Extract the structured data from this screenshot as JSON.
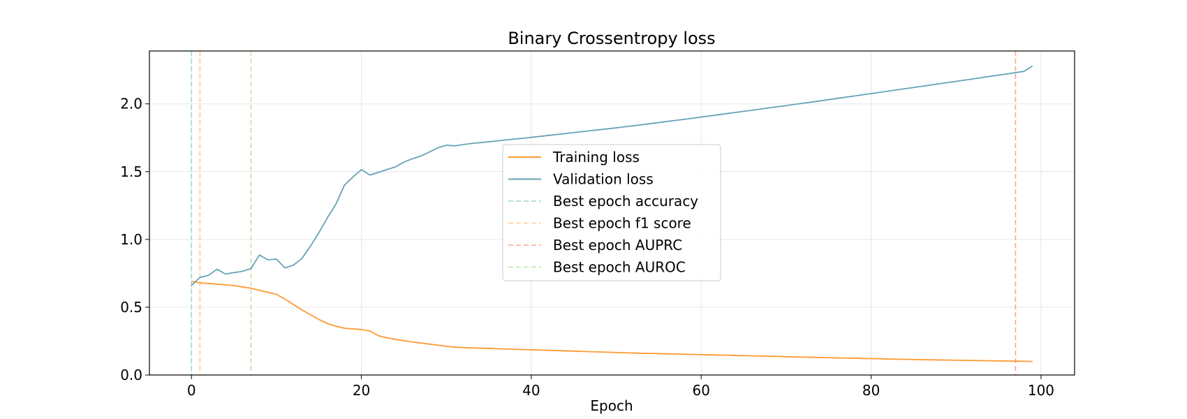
{
  "chart_data": {
    "type": "line",
    "title": "Binary Crossentropy loss",
    "xlabel": "Epoch",
    "ylabel": "",
    "xlim": [
      -4.95,
      103.95
    ],
    "ylim": [
      0.0,
      2.39
    ],
    "xticks": [
      0,
      20,
      40,
      60,
      80,
      100
    ],
    "yticks": [
      0.0,
      0.5,
      1.0,
      1.5,
      2.0
    ],
    "xtick_labels": [
      "0",
      "20",
      "40",
      "60",
      "80",
      "100"
    ],
    "ytick_labels": [
      "0.0",
      "0.5",
      "1.0",
      "1.5",
      "2.0"
    ],
    "grid": true,
    "legend_position": "center",
    "series": [
      {
        "name": "Training loss",
        "color": "#ff9933",
        "x": [
          0,
          1,
          2,
          3,
          4,
          5,
          6,
          7,
          8,
          9,
          10,
          11,
          12,
          13,
          14,
          15,
          16,
          17,
          18,
          19,
          20,
          21,
          22,
          23,
          24,
          25,
          26,
          27,
          28,
          29,
          30,
          31,
          32,
          33,
          34,
          35,
          36,
          37,
          38,
          39,
          40,
          41,
          42,
          43,
          44,
          45,
          46,
          47,
          48,
          49,
          50,
          51,
          52,
          53,
          54,
          55,
          56,
          57,
          58,
          59,
          60,
          61,
          62,
          63,
          64,
          65,
          66,
          67,
          68,
          69,
          70,
          71,
          72,
          73,
          74,
          75,
          76,
          77,
          78,
          79,
          80,
          81,
          82,
          83,
          84,
          85,
          86,
          87,
          88,
          89,
          90,
          91,
          92,
          93,
          94,
          95,
          96,
          97,
          98,
          99
        ],
        "y": [
          0.69,
          0.68,
          0.675,
          0.67,
          0.665,
          0.66,
          0.65,
          0.64,
          0.625,
          0.61,
          0.595,
          0.56,
          0.52,
          0.48,
          0.445,
          0.41,
          0.38,
          0.36,
          0.345,
          0.34,
          0.335,
          0.325,
          0.29,
          0.275,
          0.263,
          0.253,
          0.244,
          0.236,
          0.228,
          0.22,
          0.212,
          0.205,
          0.202,
          0.2,
          0.198,
          0.196,
          0.194,
          0.192,
          0.19,
          0.188,
          0.186,
          0.184,
          0.182,
          0.18,
          0.178,
          0.176,
          0.174,
          0.172,
          0.17,
          0.168,
          0.166,
          0.164,
          0.162,
          0.16,
          0.159,
          0.158,
          0.156,
          0.155,
          0.153,
          0.152,
          0.15,
          0.149,
          0.147,
          0.146,
          0.144,
          0.143,
          0.141,
          0.14,
          0.138,
          0.137,
          0.135,
          0.134,
          0.132,
          0.131,
          0.129,
          0.128,
          0.126,
          0.125,
          0.124,
          0.122,
          0.121,
          0.12,
          0.118,
          0.117,
          0.116,
          0.114,
          0.113,
          0.112,
          0.111,
          0.11,
          0.109,
          0.108,
          0.107,
          0.106,
          0.105,
          0.104,
          0.103,
          0.102,
          0.101,
          0.1
        ]
      },
      {
        "name": "Validation loss",
        "color": "#66a3b5",
        "x": [
          0,
          1,
          2,
          3,
          4,
          5,
          6,
          7,
          8,
          9,
          10,
          11,
          12,
          13,
          14,
          15,
          16,
          17,
          18,
          19,
          20,
          21,
          22,
          23,
          24,
          25,
          26,
          27,
          28,
          29,
          30,
          31,
          32,
          33,
          34,
          35,
          36,
          37,
          38,
          39,
          40,
          41,
          42,
          43,
          44,
          45,
          46,
          47,
          48,
          49,
          50,
          51,
          52,
          53,
          54,
          55,
          56,
          57,
          58,
          59,
          60,
          61,
          62,
          63,
          64,
          65,
          66,
          67,
          68,
          69,
          70,
          71,
          72,
          73,
          74,
          75,
          76,
          77,
          78,
          79,
          80,
          81,
          82,
          83,
          84,
          85,
          86,
          87,
          88,
          89,
          90,
          91,
          92,
          93,
          94,
          95,
          96,
          97,
          98,
          99
        ],
        "y": [
          0.66,
          0.72,
          0.735,
          0.78,
          0.745,
          0.755,
          0.765,
          0.785,
          0.885,
          0.85,
          0.855,
          0.79,
          0.81,
          0.86,
          0.95,
          1.05,
          1.16,
          1.26,
          1.4,
          1.46,
          1.515,
          1.475,
          1.495,
          1.515,
          1.535,
          1.57,
          1.595,
          1.615,
          1.645,
          1.675,
          1.695,
          1.69,
          1.7,
          1.708,
          1.714,
          1.72,
          1.727,
          1.734,
          1.74,
          1.746,
          1.753,
          1.76,
          1.767,
          1.774,
          1.781,
          1.788,
          1.795,
          1.802,
          1.809,
          1.816,
          1.823,
          1.831,
          1.838,
          1.846,
          1.854,
          1.862,
          1.87,
          1.878,
          1.886,
          1.894,
          1.903,
          1.911,
          1.919,
          1.928,
          1.936,
          1.945,
          1.953,
          1.962,
          1.97,
          1.979,
          1.987,
          1.996,
          2.005,
          2.013,
          2.022,
          2.031,
          2.04,
          2.049,
          2.058,
          2.067,
          2.076,
          2.085,
          2.094,
          2.103,
          2.112,
          2.121,
          2.13,
          2.139,
          2.148,
          2.157,
          2.166,
          2.175,
          2.184,
          2.193,
          2.203,
          2.212,
          2.221,
          2.23,
          2.24,
          2.28
        ]
      }
    ],
    "vlines": [
      {
        "name": "Best epoch accuracy",
        "x": 0,
        "color": "#9fd4d4"
      },
      {
        "name": "Best epoch f1 score",
        "x": 1,
        "color": "#ffc998"
      },
      {
        "name": "Best epoch AUPRC",
        "x": 97,
        "color": "#f7a58c"
      },
      {
        "name": "Best epoch AUROC",
        "x": 7,
        "color": "#b8e8a0"
      }
    ],
    "legend": [
      {
        "label": "Training loss",
        "style": "solid",
        "color": "#ff9933"
      },
      {
        "label": "Validation loss",
        "style": "solid",
        "color": "#66a3b5"
      },
      {
        "label": "Best epoch accuracy",
        "style": "dashed",
        "color": "#9fd4d4"
      },
      {
        "label": "Best epoch f1 score",
        "style": "dashed",
        "color": "#ffc998"
      },
      {
        "label": "Best epoch AUPRC",
        "style": "dashed",
        "color": "#f7a58c"
      },
      {
        "label": "Best epoch AUROC",
        "style": "dashed",
        "color": "#b8e8a0"
      }
    ]
  }
}
